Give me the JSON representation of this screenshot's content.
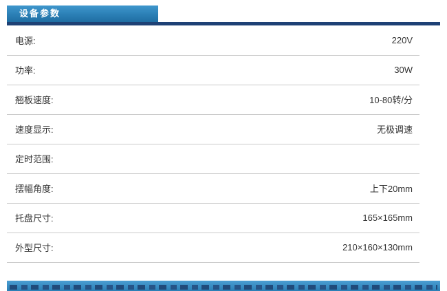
{
  "header": {
    "title": "设备参数"
  },
  "table": {
    "rows": [
      {
        "label": "电源:",
        "value": "220V"
      },
      {
        "label": "功率:",
        "value": "30W"
      },
      {
        "label": "翘板速度:",
        "value": "10-80转/分"
      },
      {
        "label": "速度显示:",
        "value": "无极调速"
      },
      {
        "label": "定时范围:",
        "value": ""
      },
      {
        "label": "摆幅角度:",
        "value": "上下20mm"
      },
      {
        "label": "托盘尺寸:",
        "value": "165×165mm"
      },
      {
        "label": "外型尺寸:",
        "value": "210×160×130mm"
      }
    ]
  },
  "colors": {
    "tab_blue": "#2b7fb5",
    "underline_navy": "#1e4175",
    "row_border": "#c9c9c9",
    "text": "#333333"
  }
}
